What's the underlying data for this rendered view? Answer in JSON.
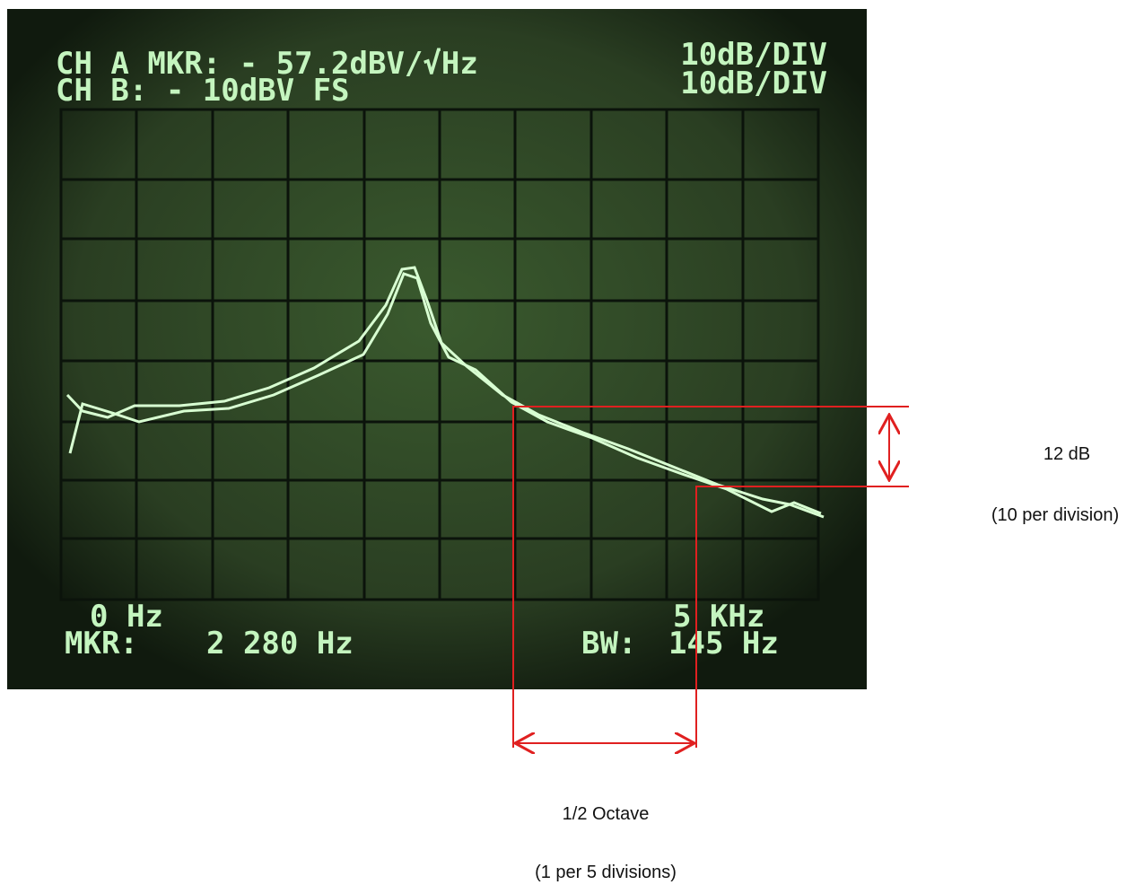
{
  "screen": {
    "header": {
      "line1_left": "CH A MKR: - 57.2dBV/√Hz",
      "line1_right": "10dB/DIV",
      "line2_left": "CH B: - 10dBV  FS",
      "line2_right": "10dB/DIV"
    },
    "footer": {
      "start": "0 Hz",
      "marker_label": "MKR:",
      "marker_value": "2 280 Hz",
      "end": "5 KHz",
      "bw_label": "BW:",
      "bw_value": "145 Hz"
    }
  },
  "annotations": {
    "vertical": {
      "label": "12 dB",
      "note": "(10 per division)"
    },
    "horizontal": {
      "label": "1/2 Octave",
      "note": "(1 per 5 divisions)"
    }
  }
}
